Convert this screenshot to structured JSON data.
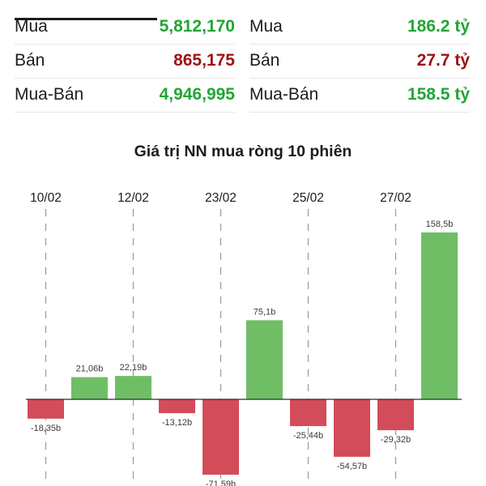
{
  "stats": {
    "volume": {
      "rows": [
        {
          "label": "Mua",
          "value": "5,812,170",
          "tone": "green"
        },
        {
          "label": "Bán",
          "value": "865,175",
          "tone": "red"
        },
        {
          "label": "Mua-Bán",
          "value": "4,946,995",
          "tone": "green"
        }
      ]
    },
    "value": {
      "rows": [
        {
          "label": "Mua",
          "value": "186.2 tỷ",
          "tone": "green"
        },
        {
          "label": "Bán",
          "value": "27.7 tỷ",
          "tone": "red"
        },
        {
          "label": "Mua-Bán",
          "value": "158.5 tỷ",
          "tone": "green"
        }
      ]
    }
  },
  "colors": {
    "positive": "#6fbe66",
    "negative": "#d34c5a",
    "text_green": "#22a534",
    "text_red": "#9c1515"
  },
  "chart_data": {
    "type": "bar",
    "title": "Giá trị NN mua ròng 10 phiên",
    "categories": [
      "",
      "",
      "",
      "",
      "",
      "",
      "",
      "",
      "",
      ""
    ],
    "date_labels": [
      "10/02",
      "12/02",
      "23/02",
      "25/02",
      "27/02"
    ],
    "values": [
      -18.35,
      21.06,
      22.19,
      -13.12,
      -71.59,
      75.1,
      -25.44,
      -54.57,
      -29.32,
      158.5
    ],
    "value_labels": [
      "-18,35b",
      "21,06b",
      "22,19b",
      "-13,12b",
      "-71,59b",
      "75,1b",
      "-25,44b",
      "-54,57b",
      "-29,32b",
      "158,5b"
    ],
    "ylim": [
      -80,
      160
    ],
    "grid": "dashed vertical at date labels"
  }
}
